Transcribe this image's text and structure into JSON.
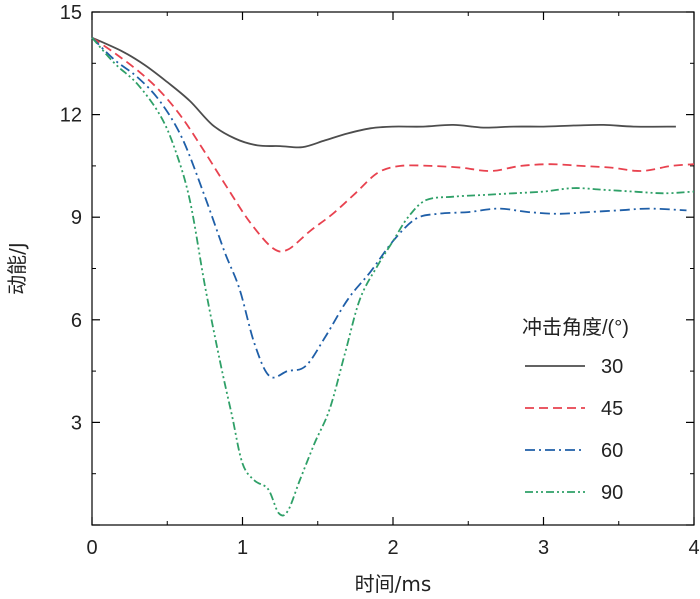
{
  "chart_data": {
    "type": "line",
    "title": "",
    "xlabel": "时间/ms",
    "ylabel": "动能/J",
    "xlim": [
      0,
      4
    ],
    "ylim": [
      0,
      15
    ],
    "xticks": [
      "0",
      "1",
      "2",
      "3",
      "4"
    ],
    "yticks": [
      "3",
      "6",
      "9",
      "12",
      "15"
    ],
    "grid": false,
    "legend": {
      "title": "冲击角度/(°)",
      "location": "right"
    },
    "series": [
      {
        "name": "30",
        "color": "#4d4d4d",
        "dash": "solid",
        "points": [
          [
            0,
            14.25
          ],
          [
            0.2,
            13.85
          ],
          [
            0.35,
            13.45
          ],
          [
            0.5,
            12.95
          ],
          [
            0.65,
            12.4
          ],
          [
            0.8,
            11.7
          ],
          [
            0.95,
            11.3
          ],
          [
            1.1,
            11.1
          ],
          [
            1.25,
            11.08
          ],
          [
            1.4,
            11.05
          ],
          [
            1.55,
            11.25
          ],
          [
            1.7,
            11.45
          ],
          [
            1.85,
            11.6
          ],
          [
            2.0,
            11.65
          ],
          [
            2.2,
            11.65
          ],
          [
            2.4,
            11.7
          ],
          [
            2.6,
            11.62
          ],
          [
            2.8,
            11.65
          ],
          [
            3.0,
            11.65
          ],
          [
            3.2,
            11.68
          ],
          [
            3.4,
            11.7
          ],
          [
            3.6,
            11.65
          ],
          [
            3.88,
            11.65
          ]
        ]
      },
      {
        "name": "45",
        "color": "#e8424f",
        "dash": "dashed",
        "points": [
          [
            0,
            14.25
          ],
          [
            0.15,
            13.8
          ],
          [
            0.3,
            13.3
          ],
          [
            0.45,
            12.7
          ],
          [
            0.6,
            11.9
          ],
          [
            0.75,
            10.9
          ],
          [
            0.9,
            9.85
          ],
          [
            1.05,
            8.85
          ],
          [
            1.2,
            8.1
          ],
          [
            1.3,
            8.05
          ],
          [
            1.45,
            8.6
          ],
          [
            1.6,
            9.1
          ],
          [
            1.75,
            9.7
          ],
          [
            1.9,
            10.3
          ],
          [
            2.05,
            10.5
          ],
          [
            2.25,
            10.5
          ],
          [
            2.45,
            10.45
          ],
          [
            2.65,
            10.35
          ],
          [
            2.85,
            10.5
          ],
          [
            3.05,
            10.55
          ],
          [
            3.25,
            10.5
          ],
          [
            3.45,
            10.45
          ],
          [
            3.65,
            10.35
          ],
          [
            3.85,
            10.5
          ],
          [
            4.0,
            10.55
          ]
        ]
      },
      {
        "name": "60",
        "color": "#1f5fa8",
        "dash": "dashdot",
        "points": [
          [
            0,
            14.25
          ],
          [
            0.15,
            13.6
          ],
          [
            0.3,
            13.1
          ],
          [
            0.45,
            12.4
          ],
          [
            0.6,
            11.3
          ],
          [
            0.75,
            9.6
          ],
          [
            0.88,
            8.0
          ],
          [
            0.98,
            6.9
          ],
          [
            1.08,
            5.3
          ],
          [
            1.18,
            4.35
          ],
          [
            1.3,
            4.5
          ],
          [
            1.42,
            4.65
          ],
          [
            1.55,
            5.5
          ],
          [
            1.7,
            6.6
          ],
          [
            1.85,
            7.4
          ],
          [
            2.0,
            8.3
          ],
          [
            2.15,
            8.95
          ],
          [
            2.3,
            9.1
          ],
          [
            2.5,
            9.15
          ],
          [
            2.7,
            9.25
          ],
          [
            2.9,
            9.15
          ],
          [
            3.1,
            9.1
          ],
          [
            3.3,
            9.15
          ],
          [
            3.5,
            9.2
          ],
          [
            3.7,
            9.25
          ],
          [
            3.95,
            9.2
          ]
        ]
      },
      {
        "name": "90",
        "color": "#2fa068",
        "dash": "dashdotdot",
        "points": [
          [
            0,
            14.25
          ],
          [
            0.15,
            13.5
          ],
          [
            0.3,
            12.9
          ],
          [
            0.45,
            12.0
          ],
          [
            0.55,
            11.0
          ],
          [
            0.65,
            9.5
          ],
          [
            0.75,
            7.0
          ],
          [
            0.85,
            4.8
          ],
          [
            0.93,
            3.2
          ],
          [
            1.0,
            1.8
          ],
          [
            1.08,
            1.3
          ],
          [
            1.17,
            1.05
          ],
          [
            1.24,
            0.35
          ],
          [
            1.3,
            0.4
          ],
          [
            1.38,
            1.3
          ],
          [
            1.48,
            2.4
          ],
          [
            1.58,
            3.4
          ],
          [
            1.68,
            5.0
          ],
          [
            1.78,
            6.6
          ],
          [
            1.9,
            7.6
          ],
          [
            2.0,
            8.3
          ],
          [
            2.1,
            9.0
          ],
          [
            2.22,
            9.5
          ],
          [
            2.4,
            9.6
          ],
          [
            2.6,
            9.65
          ],
          [
            2.8,
            9.7
          ],
          [
            3.0,
            9.75
          ],
          [
            3.2,
            9.85
          ],
          [
            3.4,
            9.8
          ],
          [
            3.6,
            9.75
          ],
          [
            3.8,
            9.7
          ],
          [
            4.0,
            9.75
          ]
        ]
      }
    ]
  }
}
